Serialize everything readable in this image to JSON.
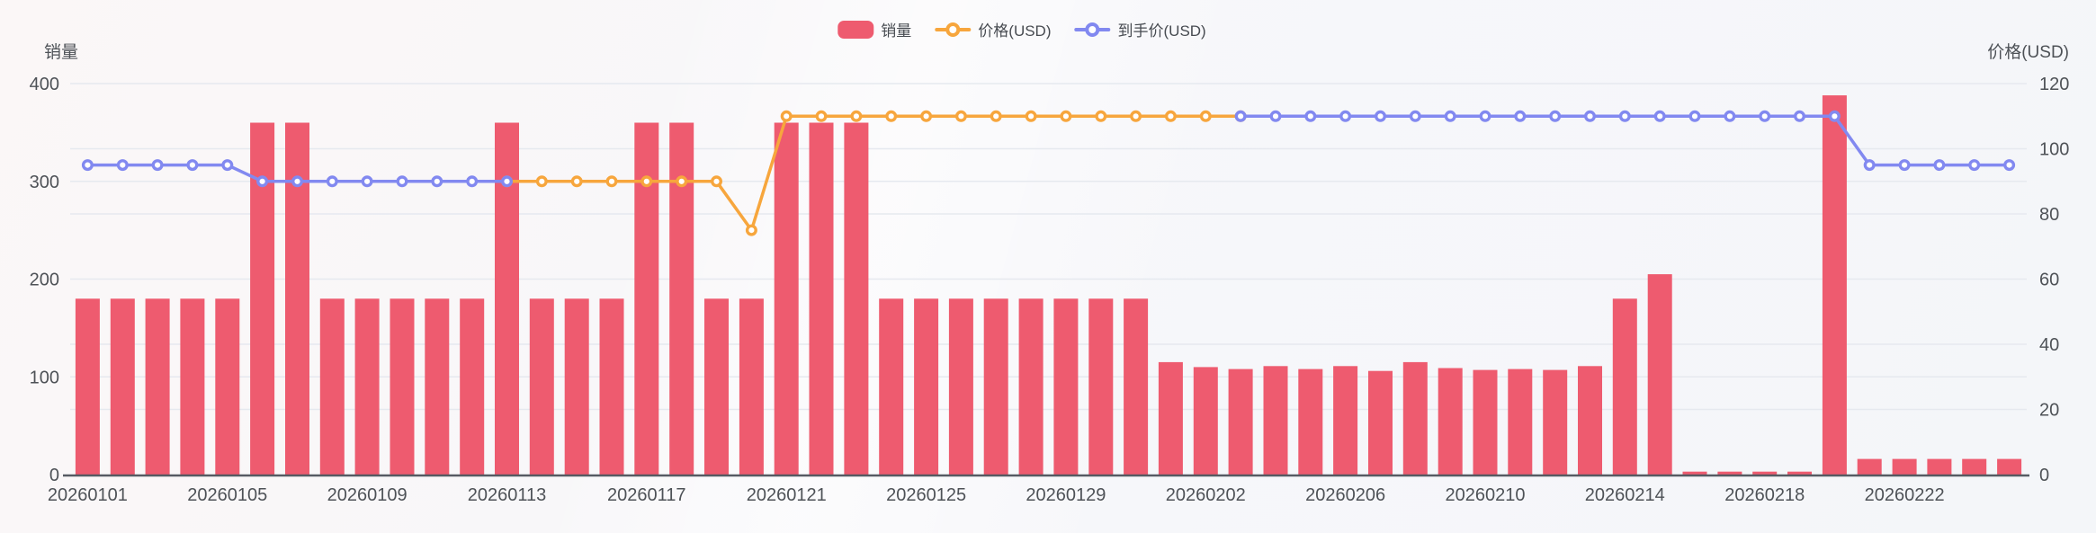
{
  "colors": {
    "sales": "#ee5b6f",
    "price": "#f7a63d",
    "net_price": "#8289f0",
    "grid": "#e6e9ef",
    "axis_line": "#565b63",
    "text": "#4e5257",
    "legend_text": "#474b51"
  },
  "axes": {
    "left": {
      "title": "销量",
      "ticks": [
        0,
        100,
        200,
        300,
        400
      ],
      "max": 400
    },
    "right": {
      "title": "价格(USD)",
      "ticks": [
        0,
        20,
        40,
        60,
        80,
        100,
        120
      ],
      "max": 120
    },
    "x": {
      "tick_every": 4,
      "shown_labels": [
        "20260101",
        "20260105",
        "20260109",
        "20260113",
        "20260117",
        "20260121",
        "20260125",
        "20260129",
        "20260202",
        "20260206",
        "20260210",
        "20260214",
        "20260218",
        "20260222"
      ]
    }
  },
  "chart_data": {
    "type": "combo-bar-line",
    "title": "",
    "xlabel": "",
    "ylabel_left": "销量",
    "ylabel_right": "价格(USD)",
    "ylim_left": [
      0,
      400
    ],
    "ylim_right": [
      0,
      120
    ],
    "grid": true,
    "legend_position": "top-center",
    "x_tick_interval": 4,
    "x": [
      "20260101",
      "20260102",
      "20260103",
      "20260104",
      "20260105",
      "20260106",
      "20260107",
      "20260108",
      "20260109",
      "20260110",
      "20260111",
      "20260112",
      "20260113",
      "20260114",
      "20260115",
      "20260116",
      "20260117",
      "20260118",
      "20260119",
      "20260120",
      "20260121",
      "20260122",
      "20260123",
      "20260124",
      "20260125",
      "20260126",
      "20260127",
      "20260128",
      "20260129",
      "20260130",
      "20260131",
      "20260201",
      "20260202",
      "20260203",
      "20260204",
      "20260205",
      "20260206",
      "20260207",
      "20260208",
      "20260209",
      "20260210",
      "20260211",
      "20260212",
      "20260213",
      "20260214",
      "20260215",
      "20260216",
      "20260217",
      "20260218",
      "20260219",
      "20260220",
      "20260221",
      "20260222",
      "20260223",
      "20260224",
      "20260225"
    ],
    "series": [
      {
        "name": "销量",
        "type": "bar",
        "axis": "left",
        "color": "#ee5b6f",
        "values": [
          180,
          180,
          180,
          180,
          180,
          360,
          360,
          180,
          180,
          180,
          180,
          180,
          360,
          180,
          180,
          180,
          360,
          360,
          180,
          180,
          360,
          360,
          360,
          180,
          180,
          180,
          180,
          180,
          180,
          180,
          180,
          115,
          110,
          108,
          111,
          108,
          111,
          106,
          115,
          109,
          107,
          108,
          107,
          111,
          180,
          205,
          3,
          3,
          3,
          3,
          388,
          16,
          16,
          16,
          16,
          16
        ]
      },
      {
        "name": "价格(USD)",
        "type": "line",
        "axis": "right",
        "color": "#f7a63d",
        "values": [
          null,
          null,
          null,
          null,
          null,
          null,
          null,
          null,
          null,
          null,
          null,
          null,
          90,
          90,
          90,
          90,
          90,
          90,
          90,
          75,
          110,
          110,
          110,
          110,
          110,
          110,
          110,
          110,
          110,
          110,
          110,
          110,
          110,
          110,
          null,
          null,
          null,
          null,
          null,
          null,
          null,
          null,
          null,
          null,
          null,
          null,
          null,
          null,
          null,
          null,
          null,
          null,
          null,
          null,
          null,
          null
        ]
      },
      {
        "name": "到手价(USD)",
        "type": "line",
        "axis": "right",
        "color": "#8289f0",
        "values": [
          95,
          95,
          95,
          95,
          95,
          90,
          90,
          90,
          90,
          90,
          90,
          90,
          90,
          null,
          null,
          null,
          null,
          null,
          null,
          null,
          null,
          null,
          null,
          null,
          null,
          null,
          null,
          null,
          null,
          null,
          null,
          null,
          null,
          110,
          110,
          110,
          110,
          110,
          110,
          110,
          110,
          110,
          110,
          110,
          110,
          110,
          110,
          110,
          110,
          110,
          110,
          95,
          95,
          95,
          95,
          95
        ]
      }
    ]
  }
}
